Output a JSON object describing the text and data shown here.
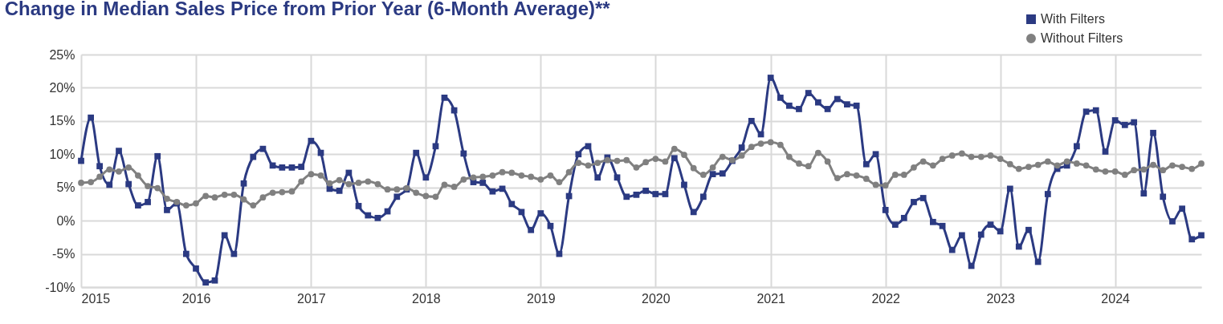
{
  "chart_data": {
    "type": "line",
    "title": "Change in Median Sales Price from Prior Year (6-Month Average)**",
    "x": [
      "2015-01",
      "2015-02",
      "2015-03",
      "2015-04",
      "2015-05",
      "2015-06",
      "2015-07",
      "2015-08",
      "2015-09",
      "2015-10",
      "2015-11",
      "2015-12",
      "2016-01",
      "2016-02",
      "2016-03",
      "2016-04",
      "2016-05",
      "2016-06",
      "2016-07",
      "2016-08",
      "2016-09",
      "2016-10",
      "2016-11",
      "2016-12",
      "2017-01",
      "2017-02",
      "2017-03",
      "2017-04",
      "2017-05",
      "2017-06",
      "2017-07",
      "2017-08",
      "2017-09",
      "2017-10",
      "2017-11",
      "2017-12",
      "2018-01",
      "2018-02",
      "2018-03",
      "2018-04",
      "2018-05",
      "2018-06",
      "2018-07",
      "2018-08",
      "2018-09",
      "2018-10",
      "2018-11",
      "2018-12",
      "2019-01",
      "2019-02",
      "2019-03",
      "2019-04",
      "2019-05",
      "2019-06",
      "2019-07",
      "2019-08",
      "2019-09",
      "2019-10",
      "2019-11",
      "2019-12",
      "2020-01",
      "2020-02",
      "2020-03",
      "2020-04",
      "2020-05",
      "2020-06",
      "2020-07",
      "2020-08",
      "2020-09",
      "2020-10",
      "2020-11",
      "2020-12",
      "2021-01",
      "2021-02",
      "2021-03",
      "2021-04",
      "2021-05",
      "2021-06",
      "2021-07",
      "2021-08",
      "2021-09",
      "2021-10",
      "2021-11",
      "2021-12",
      "2022-01",
      "2022-02",
      "2022-03",
      "2022-04",
      "2022-05",
      "2022-06",
      "2022-07",
      "2022-08",
      "2022-09",
      "2022-10",
      "2022-11",
      "2022-12",
      "2023-01",
      "2023-02",
      "2023-03",
      "2023-04",
      "2023-05",
      "2023-06",
      "2023-07",
      "2023-08",
      "2023-09",
      "2023-10",
      "2023-11",
      "2023-12",
      "2024-01",
      "2024-02",
      "2024-03",
      "2024-04",
      "2024-05",
      "2024-06",
      "2024-07",
      "2024-08",
      "2024-09",
      "2024-10"
    ],
    "series": [
      {
        "name": "With Filters",
        "color": "#2b3a82",
        "marker": "square",
        "values": [
          9,
          15.5,
          8.2,
          5.4,
          10.5,
          5.5,
          2.3,
          2.8,
          9.7,
          1.6,
          2.6,
          -5,
          -7.2,
          -9.3,
          -9,
          -2.2,
          -5,
          5.6,
          9.6,
          10.8,
          8.3,
          8,
          8,
          8.1,
          12,
          10.2,
          4.8,
          4.5,
          7.2,
          2.2,
          0.8,
          0.4,
          1.4,
          3.6,
          4.7,
          10.2,
          6.5,
          11.2,
          18.5,
          16.6,
          10.1,
          5.8,
          5.7,
          4.4,
          4.8,
          2.5,
          1.3,
          -1.4,
          1.1,
          -0.8,
          -5,
          3.7,
          10,
          11.2,
          6.5,
          9.5,
          6.5,
          3.6,
          3.9,
          4.5,
          4,
          4,
          9.4,
          5.4,
          1.3,
          3.6,
          7,
          7.1,
          9,
          11,
          15,
          13,
          21.5,
          18.5,
          17.3,
          16.8,
          19.2,
          17.8,
          16.8,
          18.3,
          17.5,
          17.3,
          8.5,
          10,
          1.6,
          -0.6,
          0.4,
          2.8,
          3.4,
          -0.2,
          -0.8,
          -4.4,
          -2.2,
          -6.8,
          -2.1,
          -0.6,
          -1.6,
          4.8,
          -3.9,
          -1.4,
          -6.2,
          4,
          7.8,
          8.3,
          11.2,
          16.4,
          16.6,
          10.4,
          15.1,
          14.4,
          14.8,
          4.1,
          13.2,
          3.6,
          -0.1,
          1.8,
          -2.8,
          -2.2
        ]
      },
      {
        "name": "Without Filters",
        "color": "#808080",
        "marker": "circle",
        "values": [
          5.7,
          5.8,
          6.6,
          7.7,
          7.4,
          8,
          6.8,
          5.2,
          4.9,
          3.3,
          2.8,
          2.3,
          2.6,
          3.7,
          3.5,
          3.9,
          3.9,
          3.2,
          2.3,
          3.5,
          4.2,
          4.3,
          4.4,
          5.9,
          7,
          6.8,
          5.6,
          6.1,
          5.5,
          5.7,
          5.9,
          5.5,
          4.7,
          4.7,
          4.9,
          4.2,
          3.7,
          3.6,
          5.4,
          5.1,
          6.2,
          6.5,
          6.6,
          6.8,
          7.3,
          7.2,
          6.8,
          6.6,
          6.2,
          6.8,
          5.8,
          7.3,
          8.7,
          8.3,
          8.7,
          9.1,
          9,
          9.1,
          8,
          8.8,
          9.3,
          8.9,
          10.8,
          9.9,
          7.9,
          6.9,
          8,
          9.6,
          9.1,
          9.8,
          11.1,
          11.6,
          11.8,
          11.4,
          9.6,
          8.6,
          8.2,
          10.2,
          8.9,
          6.4,
          7,
          6.8,
          6.3,
          5.4,
          5.3,
          6.9,
          6.9,
          8,
          8.9,
          8.3,
          9.3,
          9.8,
          10.1,
          9.6,
          9.6,
          9.8,
          9.3,
          8.5,
          7.8,
          8.1,
          8.4,
          8.9,
          8.3,
          8.9,
          8.6,
          8.3,
          7.7,
          7.4,
          7.4,
          6.9,
          7.6,
          7.7,
          8.4,
          7.6,
          8.3,
          8.1,
          7.8,
          8.6
        ]
      }
    ],
    "xlim": [
      "2015-01",
      "2024-10"
    ],
    "xticks": [
      {
        "value": "2015-01",
        "label": "2015"
      },
      {
        "value": "2016-01",
        "label": "2016"
      },
      {
        "value": "2017-01",
        "label": "2017"
      },
      {
        "value": "2018-01",
        "label": "2018"
      },
      {
        "value": "2019-01",
        "label": "2019"
      },
      {
        "value": "2020-01",
        "label": "2020"
      },
      {
        "value": "2021-01",
        "label": "2021"
      },
      {
        "value": "2022-01",
        "label": "2022"
      },
      {
        "value": "2023-01",
        "label": "2023"
      },
      {
        "value": "2024-01",
        "label": "2024"
      }
    ],
    "ylim": [
      -10,
      25
    ],
    "yticks": [
      {
        "value": -10,
        "label": "-10%"
      },
      {
        "value": -5,
        "label": "-5%"
      },
      {
        "value": 0,
        "label": "0%"
      },
      {
        "value": 5,
        "label": "5%"
      },
      {
        "value": 10,
        "label": "10%"
      },
      {
        "value": 15,
        "label": "15%"
      },
      {
        "value": 20,
        "label": "20%"
      },
      {
        "value": 25,
        "label": "25%"
      }
    ],
    "grid": true,
    "legend": "top right"
  }
}
